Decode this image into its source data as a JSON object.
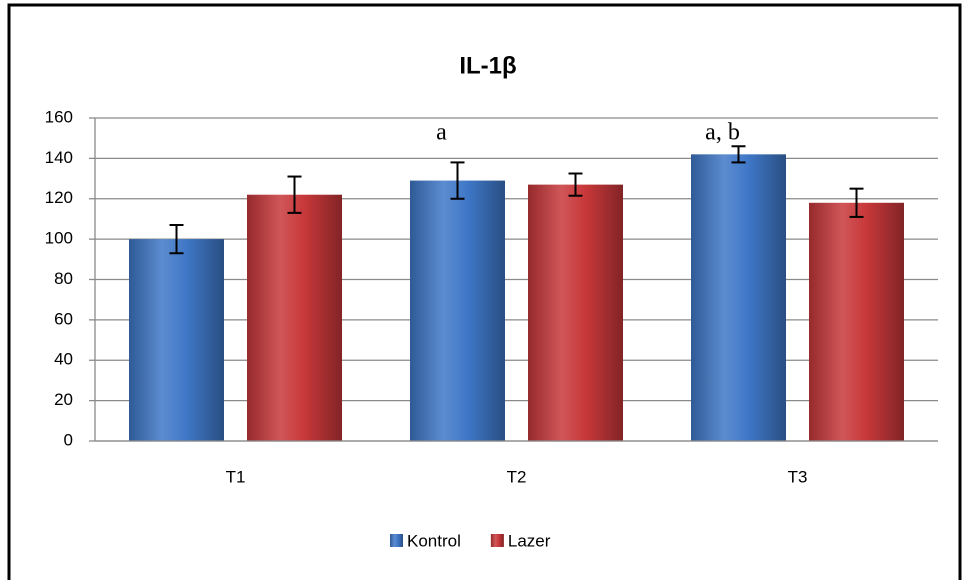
{
  "chart_data": {
    "type": "bar",
    "title": "IL-1β",
    "categories": [
      "T1",
      "T2",
      "T3"
    ],
    "series": [
      {
        "name": "Kontrol",
        "color": "#3f78c8",
        "values": [
          100,
          129,
          142
        ],
        "errors": [
          7,
          9,
          4
        ]
      },
      {
        "name": "Lazer",
        "color": "#c8383a",
        "values": [
          122,
          127,
          118
        ],
        "errors": [
          9,
          5.5,
          7
        ]
      }
    ],
    "annotations": [
      {
        "text": "a",
        "category": "T2",
        "series": "Kontrol"
      },
      {
        "text": "a, b",
        "category": "T3",
        "series": "Kontrol"
      }
    ],
    "ylim": [
      0,
      160
    ],
    "yticks": [
      0,
      20,
      40,
      60,
      80,
      100,
      120,
      140,
      160
    ],
    "grid": true,
    "legend": "bottom"
  }
}
